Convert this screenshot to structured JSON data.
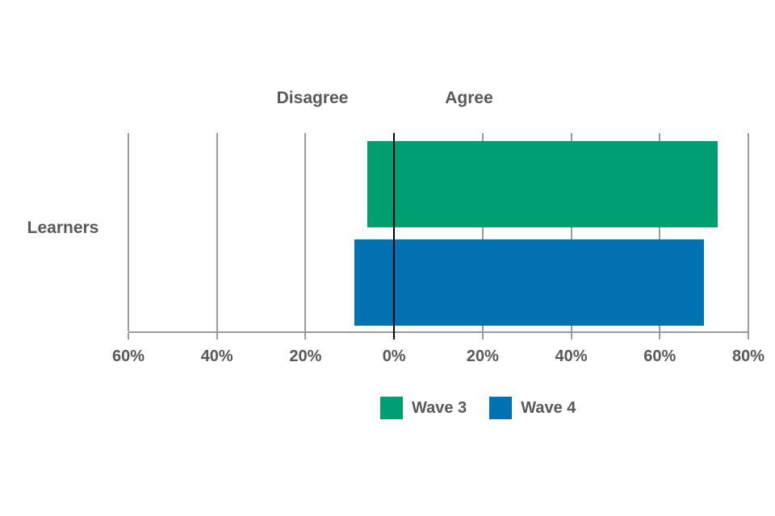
{
  "chart_data": {
    "type": "bar",
    "variant": "diverging-horizontal",
    "category": "Learners",
    "side_labels": {
      "left": "Disagree",
      "right": "Agree"
    },
    "axis": {
      "min": -60,
      "max": 80,
      "tick_values": [
        -60,
        -40,
        -20,
        0,
        20,
        40,
        60,
        80
      ],
      "tick_labels": [
        "60%",
        "40%",
        "20%",
        "0%",
        "20%",
        "40%",
        "60%",
        "80%"
      ],
      "unit": "%"
    },
    "series": [
      {
        "name": "Wave 3",
        "color": "#009E73",
        "disagree_pct": 6,
        "agree_pct": 73
      },
      {
        "name": "Wave 4",
        "color": "#0072B2",
        "disagree_pct": 9,
        "agree_pct": 70
      }
    ],
    "grid": true,
    "legend_position": "bottom",
    "colors": {
      "text": "#595959",
      "gridline": "#9B9B9B",
      "zero_line": "#000000",
      "background": "#FFFFFF"
    }
  }
}
